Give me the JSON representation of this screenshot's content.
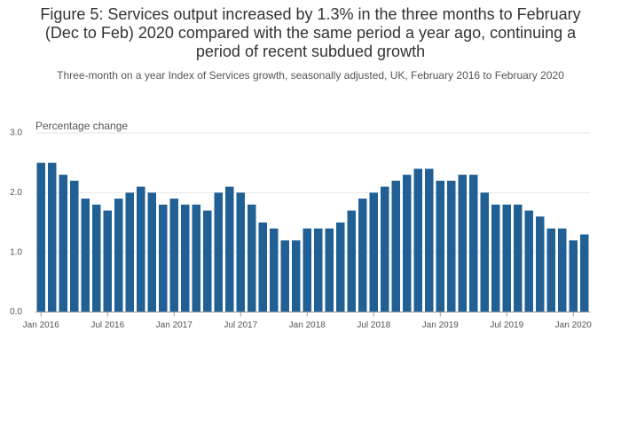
{
  "chart_data": {
    "type": "bar",
    "title": "Figure 5: Services output increased by 1.3% in the three months to February (Dec to Feb) 2020 compared with the same period a year ago, continuing a period of recent subdued growth",
    "subtitle": "Three-month on a year Index of Services growth, seasonally adjusted, UK, February 2016 to February 2020",
    "y_axis_label": "Percentage change",
    "categories": [
      "Jan 2016",
      null,
      null,
      null,
      null,
      null,
      "Jul 2016",
      null,
      null,
      null,
      null,
      null,
      "Jan 2017",
      null,
      null,
      null,
      null,
      null,
      "Jul 2017",
      null,
      null,
      null,
      null,
      null,
      "Jan 2018",
      null,
      null,
      null,
      null,
      null,
      "Jul 2018",
      null,
      null,
      null,
      null,
      null,
      "Jan 2019",
      null,
      null,
      null,
      null,
      null,
      "Jul 2019",
      null,
      null,
      null,
      null,
      null,
      "Jan 2020",
      null
    ],
    "values": [
      2.5,
      2.5,
      2.3,
      2.2,
      1.9,
      1.8,
      1.7,
      1.9,
      2.0,
      2.1,
      2.0,
      1.8,
      1.9,
      1.8,
      1.8,
      1.7,
      2.0,
      2.1,
      2.0,
      1.8,
      1.5,
      1.4,
      1.2,
      1.2,
      1.4,
      1.4,
      1.4,
      1.5,
      1.7,
      1.9,
      2.0,
      2.1,
      2.2,
      2.3,
      2.4,
      2.4,
      2.2,
      2.2,
      2.3,
      2.3,
      2.0,
      1.8,
      1.8,
      1.8,
      1.7,
      1.6,
      1.4,
      1.4,
      1.2,
      1.3
    ],
    "color": "#206095",
    "ylim": [
      0,
      3
    ],
    "yticks": [
      {
        "value": 0,
        "label": "0.0"
      },
      {
        "value": 1,
        "label": "1.0"
      },
      {
        "value": 2,
        "label": "2.0"
      },
      {
        "value": 3,
        "label": "3.0"
      }
    ],
    "grid": true
  }
}
